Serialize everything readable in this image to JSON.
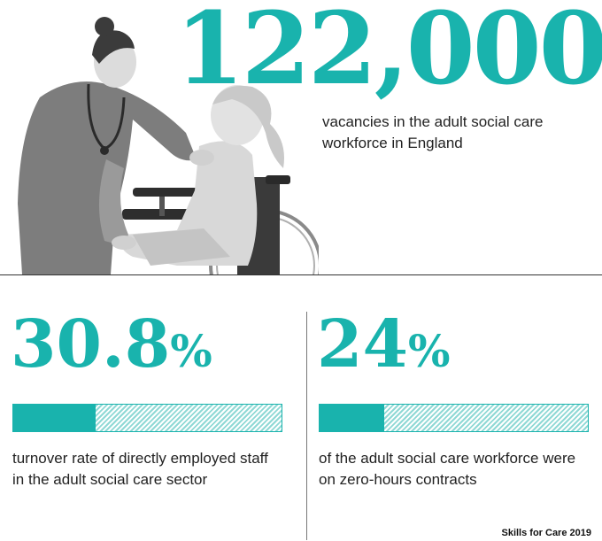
{
  "headline": {
    "number": "122,000",
    "description": "vacancies in the adult social care workforce in England"
  },
  "stats": [
    {
      "number": "30.8",
      "unit": "%",
      "fraction": 0.308,
      "description": "turnover rate of directly employed staff in the adult social care sector"
    },
    {
      "number": "24",
      "unit": "%",
      "fraction": 0.24,
      "description": "of the adult social care workforce were on zero-hours contracts"
    }
  ],
  "source": "Skills for Care 2019",
  "colors": {
    "accent": "#19b3ad",
    "hatch": "#8fd9d5",
    "text": "#222222"
  }
}
